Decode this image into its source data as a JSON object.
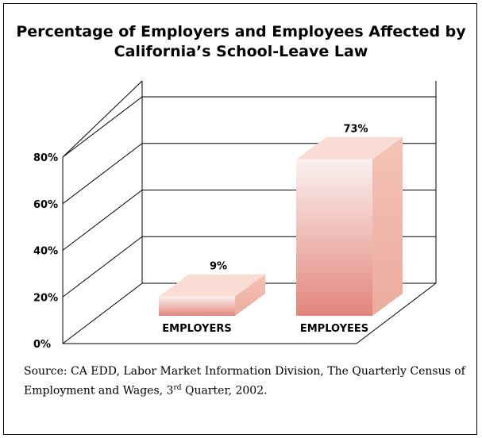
{
  "chart_data": {
    "type": "bar",
    "title_lines": [
      "Percentage of Employers and Employees Affected by",
      "California’s School-Leave Law"
    ],
    "categories": [
      "EMPLOYERS",
      "EMPLOYEES"
    ],
    "values": [
      9,
      73
    ],
    "value_labels": [
      "9%",
      "73%"
    ],
    "yticks": [
      0,
      20,
      40,
      60,
      80
    ],
    "ytick_labels": [
      "0%",
      "20%",
      "40%",
      "60%",
      "80%"
    ],
    "ylim": [
      0,
      80
    ],
    "grid": true,
    "three_d": true
  },
  "source": {
    "prefix": "Source:  CA EDD, Labor Market Information Division, The Quarterly Census of Employment and Wages, 3",
    "superscript": "rd",
    "suffix": " Quarter, 2002."
  },
  "colors": {
    "bar_front_top": "#fbeeee",
    "bar_front_bottom": "#e2847a",
    "bar_side": "#f0b3a6",
    "bar_top": "#f9dcd4",
    "grid": "#000000"
  }
}
